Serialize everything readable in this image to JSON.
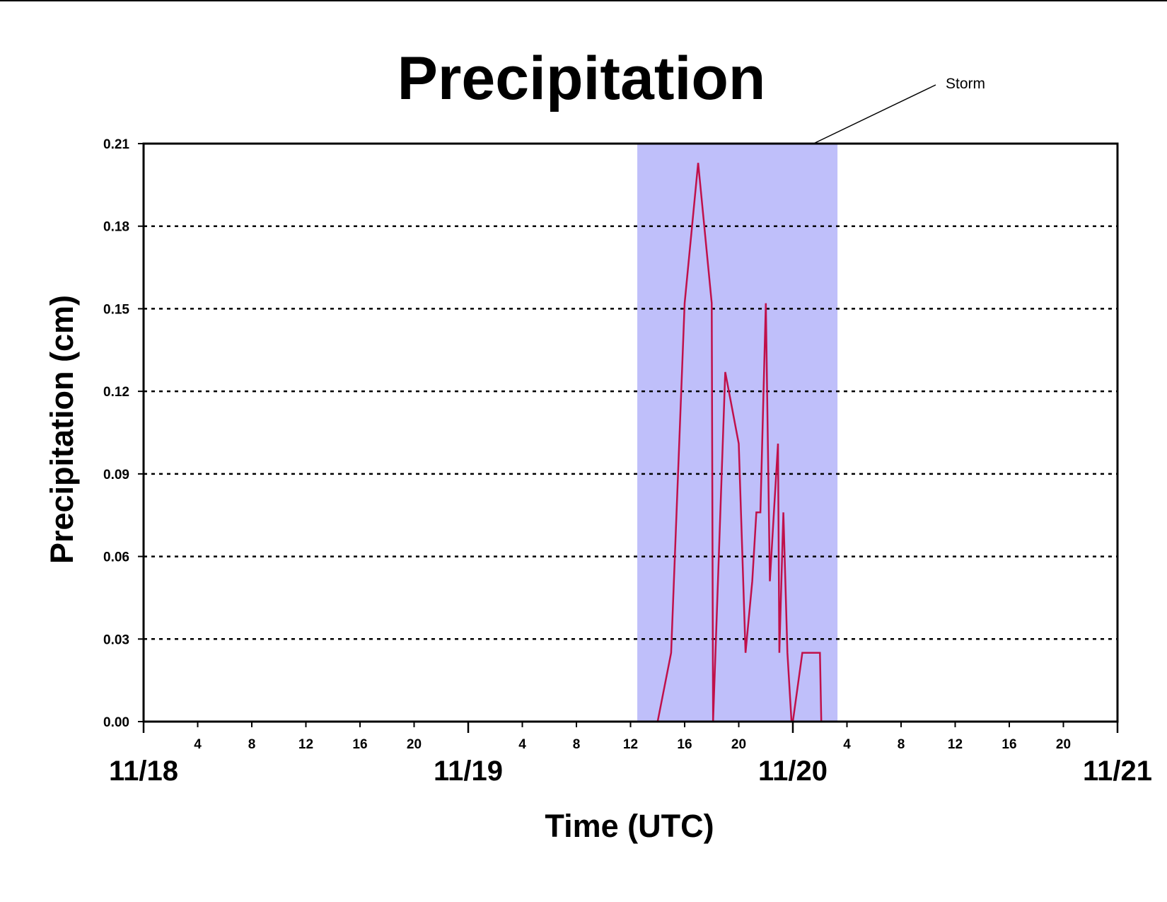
{
  "chart_data": {
    "type": "line",
    "title": "Precipitation",
    "xlabel": "Time (UTC)",
    "ylabel": "Precipitation (cm)",
    "ylim": [
      0,
      0.21
    ],
    "yticks": [
      "0.00",
      "0.03",
      "0.06",
      "0.09",
      "0.12",
      "0.15",
      "0.18",
      "0.21"
    ],
    "ytick_values": [
      0,
      0.03,
      0.06,
      0.09,
      0.12,
      0.15,
      0.18,
      0.21
    ],
    "xlim_hours": [
      0,
      72
    ],
    "x_units": "hours from 11/18 00 UTC",
    "date_labels": [
      {
        "label": "11/18",
        "hour": 0
      },
      {
        "label": "11/19",
        "hour": 24
      },
      {
        "label": "11/20",
        "hour": 48
      },
      {
        "label": "11/21",
        "hour": 72
      }
    ],
    "hour_ticks": [
      {
        "label": "4",
        "hour": 4
      },
      {
        "label": "8",
        "hour": 8
      },
      {
        "label": "12",
        "hour": 12
      },
      {
        "label": "16",
        "hour": 16
      },
      {
        "label": "20",
        "hour": 20
      },
      {
        "label": "4",
        "hour": 28
      },
      {
        "label": "8",
        "hour": 32
      },
      {
        "label": "12",
        "hour": 36
      },
      {
        "label": "16",
        "hour": 40
      },
      {
        "label": "20",
        "hour": 44
      },
      {
        "label": "4",
        "hour": 52
      },
      {
        "label": "8",
        "hour": 56
      },
      {
        "label": "12",
        "hour": 60
      },
      {
        "label": "16",
        "hour": 64
      },
      {
        "label": "20",
        "hour": 68
      }
    ],
    "grid": "horizontal dotted",
    "shaded_region": {
      "label": "Storm",
      "start_hour": 36.5,
      "end_hour": 51.3,
      "color": "#bfbffa"
    },
    "series": [
      {
        "color": "#c0104a",
        "x": [
          0,
          38.0,
          39.0,
          40.0,
          41.0,
          42.0,
          42.1,
          43.0,
          44.0,
          44.5,
          45.0,
          45.3,
          45.6,
          46.0,
          46.3,
          46.6,
          46.9,
          47.0,
          47.3,
          47.6,
          47.9,
          48.0,
          48.7,
          49.0,
          50.0,
          50.1,
          72
        ],
        "y": [
          0,
          0,
          0.025,
          0.152,
          0.203,
          0.152,
          0,
          0.127,
          0.101,
          0.025,
          0.051,
          0.076,
          0.076,
          0.152,
          0.051,
          0.076,
          0.101,
          0.025,
          0.076,
          0.025,
          0,
          0,
          0.025,
          0.025,
          0.025,
          0,
          0
        ]
      }
    ]
  },
  "colors": {
    "line": "#c0104a",
    "storm_fill": "#bfbffa",
    "axis": "#000000"
  }
}
